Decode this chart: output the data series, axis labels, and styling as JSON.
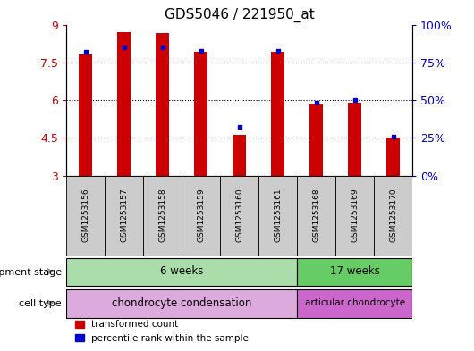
{
  "title": "GDS5046 / 221950_at",
  "samples": [
    "GSM1253156",
    "GSM1253157",
    "GSM1253158",
    "GSM1253159",
    "GSM1253160",
    "GSM1253161",
    "GSM1253168",
    "GSM1253169",
    "GSM1253170"
  ],
  "red_values": [
    7.8,
    8.7,
    8.65,
    7.9,
    4.6,
    7.9,
    5.85,
    5.9,
    4.5
  ],
  "blue_values": [
    7.9,
    8.1,
    8.1,
    7.95,
    4.95,
    7.95,
    5.9,
    6.0,
    4.55
  ],
  "y_min": 3,
  "y_max": 9,
  "y_ticks": [
    3,
    4.5,
    6,
    7.5,
    9
  ],
  "bar_color": "#cc0000",
  "dot_color": "#0000cc",
  "bar_width": 0.35,
  "green_light": "#aaddaa",
  "green_dark": "#66cc66",
  "pink_light": "#ddaadd",
  "pink_dark": "#cc66cc",
  "dev_stage_6w_label": "6 weeks",
  "dev_stage_17w_label": "17 weeks",
  "cell_type_chondro_label": "chondrocyte condensation",
  "cell_type_articular_label": "articular chondrocyte",
  "dev_stage_label": "development stage",
  "cell_type_label": "cell type",
  "legend_red": "transformed count",
  "legend_blue": "percentile rank within the sample",
  "tick_label_color_left": "#cc0000",
  "tick_label_color_right": "#0000cc",
  "n_6weeks": 6,
  "n_17weeks": 3
}
